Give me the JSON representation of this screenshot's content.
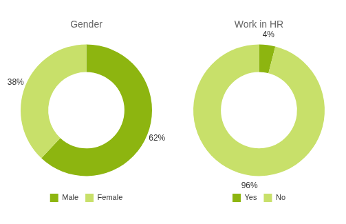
{
  "chart_data": [
    {
      "type": "doughnut",
      "title": "Gender",
      "categories": [
        "Male",
        "Female"
      ],
      "values": [
        62,
        38
      ],
      "value_labels": [
        "62%",
        "38%"
      ],
      "data_labels": true,
      "colors": [
        "#8db510",
        "#c8e06a"
      ],
      "legend": "bottom"
    },
    {
      "type": "doughnut",
      "title": "Work in HR",
      "categories": [
        "Yes",
        "No"
      ],
      "values": [
        4,
        96
      ],
      "value_labels": [
        "4%",
        "96%"
      ],
      "data_labels": true,
      "colors": [
        "#8db510",
        "#c8e06a"
      ],
      "legend": "bottom"
    }
  ]
}
